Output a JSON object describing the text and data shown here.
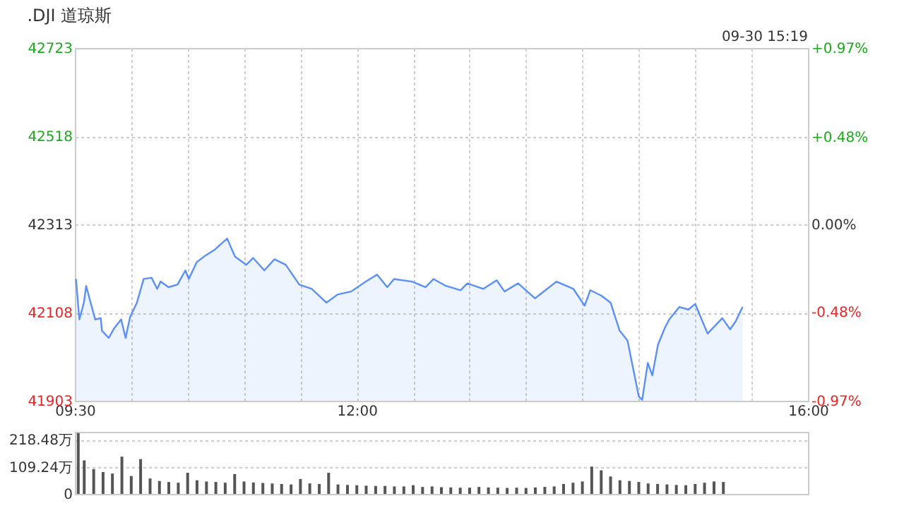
{
  "chart_data": [
    {
      "type": "area",
      "title": ".DJI 道琼斯",
      "annotations": [
        "09-30 15:19"
      ],
      "x": [
        9.51,
        9.54,
        9.58,
        9.6,
        9.64,
        9.68,
        9.73,
        9.74,
        9.8,
        9.85,
        9.91,
        9.95,
        9.99,
        10.05,
        10.11,
        10.18,
        10.23,
        10.26,
        10.33,
        10.41,
        10.48,
        10.51,
        10.58,
        10.66,
        10.74,
        10.85,
        10.92,
        11.02,
        11.08,
        11.18,
        11.27,
        11.37,
        11.49,
        11.6,
        11.73,
        11.83,
        11.95,
        12.08,
        12.18,
        12.27,
        12.33,
        12.49,
        12.61,
        12.68,
        12.79,
        12.92,
        12.98,
        13.12,
        13.24,
        13.31,
        13.43,
        13.58,
        13.77,
        13.92,
        14.02,
        14.07,
        14.17,
        14.25,
        14.33,
        14.4,
        14.45,
        14.5,
        14.53,
        14.58,
        14.62,
        14.67,
        14.73,
        14.77,
        14.86,
        14.94,
        15.0,
        15.11,
        15.24,
        15.31,
        15.36,
        15.42
      ],
      "series": [
        {
          "color": "#5b8ff9",
          "values": [
            42186,
            42092,
            42131,
            42170,
            42131,
            42092,
            42095,
            42066,
            42049,
            42072,
            42092,
            42049,
            42098,
            42131,
            42186,
            42189,
            42163,
            42180,
            42167,
            42173,
            42206,
            42186,
            42225,
            42241,
            42254,
            42280,
            42238,
            42219,
            42235,
            42206,
            42232,
            42219,
            42173,
            42163,
            42131,
            42150,
            42157,
            42180,
            42196,
            42167,
            42186,
            42180,
            42167,
            42186,
            42170,
            42160,
            42176,
            42163,
            42183,
            42157,
            42176,
            42141,
            42180,
            42163,
            42124,
            42160,
            42147,
            42131,
            42066,
            42043,
            41978,
            41913,
            41905,
            41991,
            41962,
            42033,
            42072,
            42092,
            42121,
            42115,
            42128,
            42059,
            42095,
            42069,
            42088,
            42121
          ]
        }
      ],
      "xlim": [
        9.5,
        16
      ],
      "xticks": [
        {
          "value": 9.5,
          "label": "09:30"
        },
        {
          "value": 10,
          "label": null
        },
        {
          "value": 10.5,
          "label": null
        },
        {
          "value": 11,
          "label": null
        },
        {
          "value": 11.5,
          "label": null
        },
        {
          "value": 12,
          "label": "12:00"
        },
        {
          "value": 12.5,
          "label": null
        },
        {
          "value": 13,
          "label": null
        },
        {
          "value": 13.5,
          "label": null
        },
        {
          "value": 14,
          "label": null
        },
        {
          "value": 14.5,
          "label": null
        },
        {
          "value": 15,
          "label": null
        },
        {
          "value": 15.5,
          "label": null
        },
        {
          "value": 16,
          "label": "16:00"
        }
      ],
      "ylim": [
        41903,
        42723
      ],
      "yticks": [
        41903,
        42108,
        42313,
        42518,
        42723
      ],
      "y2lim": [
        -0.97,
        0.97
      ],
      "y2ticks": [
        {
          "value": -0.97,
          "label": "-0.97%"
        },
        {
          "value": -0.48,
          "label": "-0.48%"
        },
        {
          "value": 0,
          "label": "0.00%"
        },
        {
          "value": 0.48,
          "label": "+0.48%"
        },
        {
          "value": 0.97,
          "label": "+0.97%"
        }
      ],
      "grid": true
    },
    {
      "type": "bar",
      "tick_labels": "y",
      "grid": "y",
      "x": [
        9.53,
        9.583,
        9.667,
        9.75,
        9.833,
        9.917,
        10,
        10.083,
        10.167,
        10.25,
        10.333,
        10.417,
        10.5,
        10.583,
        10.667,
        10.75,
        10.833,
        10.917,
        11,
        11.083,
        11.167,
        11.25,
        11.333,
        11.417,
        11.5,
        11.583,
        11.667,
        11.75,
        11.833,
        11.917,
        12,
        12.083,
        12.167,
        12.25,
        12.333,
        12.417,
        12.5,
        12.583,
        12.667,
        12.75,
        12.833,
        12.917,
        13,
        13.083,
        13.167,
        13.25,
        13.333,
        13.417,
        13.5,
        13.583,
        13.667,
        13.75,
        13.833,
        13.917,
        14,
        14.083,
        14.167,
        14.25,
        14.333,
        14.417,
        14.5,
        14.583,
        14.667,
        14.75,
        14.833,
        14.917,
        15,
        15.083,
        15.167,
        15.25
      ],
      "series": [
        {
          "color": "#555555",
          "values": [
            245,
            135,
            100,
            88,
            82,
            150,
            72,
            140,
            62,
            52,
            48,
            45,
            85,
            55,
            50,
            48,
            45,
            80,
            50,
            46,
            44,
            42,
            40,
            38,
            60,
            42,
            40,
            85,
            38,
            36,
            35,
            33,
            32,
            32,
            30,
            30,
            35,
            28,
            30,
            27,
            26,
            25,
            25,
            28,
            26,
            25,
            24,
            25,
            24,
            26,
            28,
            30,
            40,
            45,
            50,
            110,
            95,
            70,
            55,
            52,
            48,
            42,
            40,
            38,
            36,
            35,
            40,
            45,
            50,
            48
          ]
        }
      ],
      "xlim": [
        9.5,
        16
      ],
      "ylim": [
        0,
        250
      ],
      "yticks": [
        0,
        {
          "value": 109.24,
          "label": "109.24万"
        },
        {
          "value": 218.48,
          "label": "218.48万"
        }
      ]
    }
  ]
}
